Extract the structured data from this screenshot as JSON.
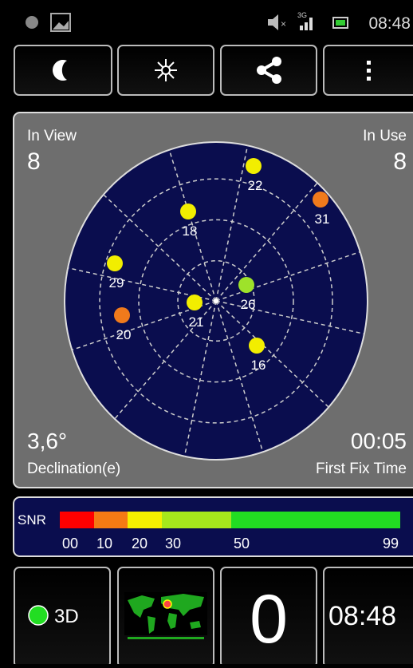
{
  "status_bar": {
    "network": "3G",
    "time": "08:48"
  },
  "panel": {
    "in_view_label": "In View",
    "in_view": "8",
    "in_use_label": "In Use",
    "in_use": "8",
    "declination": "3,6°",
    "declination_label": "Declination(e)",
    "first_fix": "00:05",
    "first_fix_label": "First Fix Time"
  },
  "satellites": [
    {
      "id": "22",
      "color": "#f2ee00"
    },
    {
      "id": "31",
      "color": "#f07a1c"
    },
    {
      "id": "18",
      "color": "#f2ee00"
    },
    {
      "id": "29",
      "color": "#f2ee00"
    },
    {
      "id": "26",
      "color": "#9ee22a"
    },
    {
      "id": "21",
      "color": "#f2ee00"
    },
    {
      "id": "20",
      "color": "#f07a1c"
    },
    {
      "id": "16",
      "color": "#f2ee00"
    }
  ],
  "snr": {
    "label": "SNR",
    "ticks": [
      "00",
      "10",
      "20",
      "30",
      "50",
      "99"
    ]
  },
  "bottom": {
    "fix": "3D",
    "count": "0",
    "time": "08:48"
  }
}
